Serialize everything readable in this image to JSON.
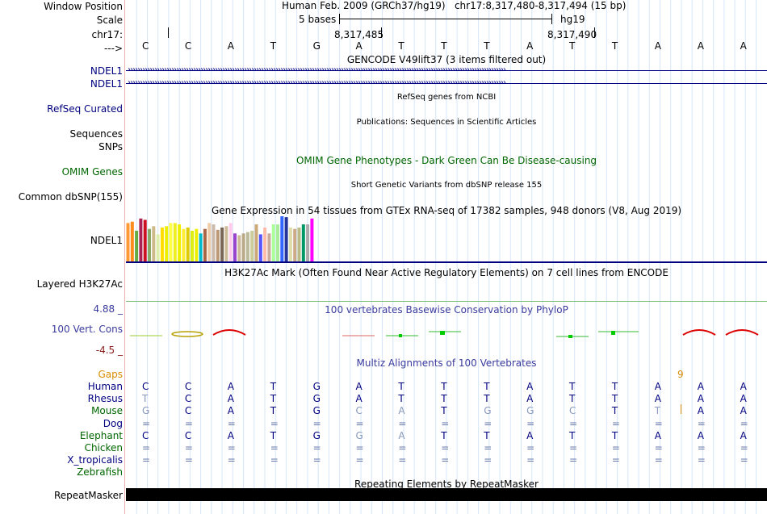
{
  "header": {
    "title": "Human Feb. 2009 (GRCh37/hg19)   chr17:8,317,480-8,317,494 (15 bp)",
    "scale_label": "5 bases",
    "assembly": "hg19",
    "tick1": "8,317,485",
    "tick2": "8,317,490"
  },
  "labels": {
    "window_position": "Window Position",
    "scale": "Scale",
    "chrom": "chr17:",
    "strand_arrow": "--->"
  },
  "bases": [
    "C",
    "C",
    "A",
    "T",
    "G",
    "A",
    "T",
    "T",
    "T",
    "A",
    "T",
    "T",
    "A",
    "A",
    "A"
  ],
  "gencode": {
    "title": "GENCODE V49lift37 (3 items filtered out)",
    "gene1": "NDEL1",
    "gene2": "NDEL1"
  },
  "refseq": {
    "label": "RefSeq Curated",
    "title": "RefSeq genes from NCBI"
  },
  "pubs": {
    "label": "Sequences",
    "title": "Publications: Sequences in Scientific Articles"
  },
  "snps": {
    "label": "SNPs"
  },
  "omim": {
    "label": "OMIM Genes",
    "title": "OMIM Gene Phenotypes - Dark Green Can Be Disease-causing"
  },
  "dbsnp": {
    "label": "Common dbSNP(155)",
    "title": "Short Genetic Variants from dbSNP release 155"
  },
  "gtex": {
    "title": "Gene Expression in 54 tissues from GTEx RNA-seq of 17382 samples, 948 donors (V8, Aug 2019)",
    "label": "NDEL1",
    "colors": [
      "#ff9933",
      "#ff8c1a",
      "#66aa44",
      "#aa2255",
      "#cc1122",
      "#88aa66",
      "#ccbb88",
      "#ddeeaa",
      "#ffdd00",
      "#eeee00",
      "#ffff44",
      "#eeee22",
      "#eeee00",
      "#ffee33",
      "#ddcc00",
      "#ddee11",
      "#eeee00",
      "#00bbcc",
      "#aa6644",
      "#eeccaa",
      "#ccbbaa",
      "#bb9977",
      "#776655",
      "#ccbb99",
      "#ffccee",
      "#9944cc",
      "#ccbb99",
      "#bbaa88",
      "#bbbb99",
      "#cccc99",
      "#ccaa77",
      "#5555ff",
      "#ffbbaa",
      "#ccaa99",
      "#aaff99",
      "#aaee99",
      "#3366ff",
      "#223399",
      "#ddddaa",
      "#ccaa88",
      "#bbbb88",
      "#009966",
      "#aaaaaa",
      "#ff00ff"
    ],
    "values": [
      0.85,
      0.88,
      0.68,
      0.95,
      0.92,
      0.72,
      0.78,
      0.6,
      0.75,
      0.78,
      0.85,
      0.85,
      0.82,
      0.72,
      0.75,
      0.68,
      0.72,
      0.62,
      0.72,
      0.85,
      0.82,
      0.7,
      0.75,
      0.78,
      0.85,
      0.62,
      0.58,
      0.62,
      0.65,
      0.68,
      0.82,
      0.6,
      0.75,
      0.62,
      0.82,
      0.82,
      1.0,
      0.98,
      0.75,
      0.72,
      0.75,
      0.82,
      0.82,
      0.95
    ]
  },
  "h3k27ac": {
    "title": "H3K27Ac Mark (Often Found Near Active Regulatory Elements) on 7 cell lines from ENCODE",
    "label": "Layered H3K27Ac"
  },
  "phylop": {
    "title": "100 vertebrates Basewise Conservation by PhyloP",
    "label": "100 Vert. Cons",
    "max": "4.88 _",
    "min": "-4.5 _"
  },
  "multiz": {
    "title": "Multiz Alignments of 100 Vertebrates",
    "gaps_label": "Gaps",
    "gap_value": "9",
    "species": [
      {
        "name": "Human",
        "bases": [
          "C",
          "C",
          "A",
          "T",
          "G",
          "A",
          "T",
          "T",
          "T",
          "A",
          "T",
          "T",
          "A",
          "A",
          "A"
        ]
      },
      {
        "name": "Rhesus",
        "bases": [
          "T",
          "C",
          "A",
          "T",
          "G",
          "A",
          "T",
          "T",
          "T",
          "A",
          "T",
          "T",
          "A",
          "A",
          "A"
        ]
      },
      {
        "name": "Mouse",
        "bases": [
          "G",
          "C",
          "A",
          "T",
          "G",
          "C",
          "A",
          "T",
          "G",
          "G",
          "C",
          "T",
          "T",
          "A",
          "A"
        ]
      },
      {
        "name": "Dog",
        "bases": [
          "=",
          "=",
          "=",
          "=",
          "=",
          "=",
          "=",
          "=",
          "=",
          "=",
          "=",
          "=",
          "=",
          "=",
          "="
        ]
      },
      {
        "name": "Elephant",
        "bases": [
          "C",
          "C",
          "A",
          "T",
          "G",
          "G",
          "A",
          "T",
          "T",
          "A",
          "T",
          "T",
          "A",
          "A",
          "A"
        ]
      },
      {
        "name": "Chicken",
        "bases": [
          "=",
          "=",
          "=",
          "=",
          "=",
          "=",
          "=",
          "=",
          "=",
          "=",
          "=",
          "=",
          "=",
          "=",
          "="
        ]
      },
      {
        "name": "X_tropicalis",
        "bases": [
          "=",
          "=",
          "=",
          "=",
          "=",
          "=",
          "=",
          "=",
          "=",
          "=",
          "=",
          "=",
          "=",
          "=",
          "="
        ]
      },
      {
        "name": "Zebrafish",
        "bases": [
          "",
          "",
          "",
          "",
          "",
          "",
          "",
          "",
          "",
          "",
          "",
          "",
          "",
          "",
          ""
        ]
      }
    ]
  },
  "repeatmasker": {
    "title": "Repeating Elements by RepeatMasker",
    "label": "RepeatMasker"
  }
}
